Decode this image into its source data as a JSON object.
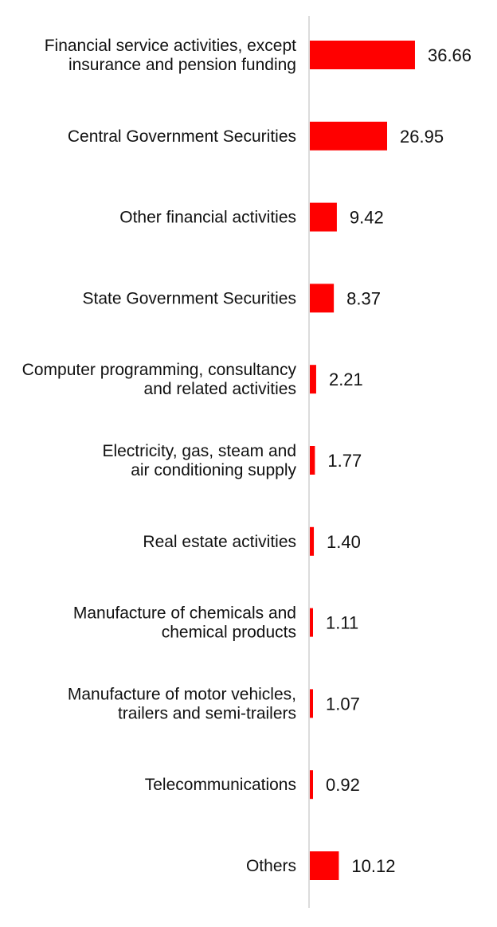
{
  "chart_data": {
    "type": "bar",
    "orientation": "horizontal",
    "title": "",
    "xlabel": "",
    "ylabel": "",
    "grid": false,
    "legend": "none",
    "bar_color": "#ff0000",
    "axis_color": "#d0d0d0",
    "categories": [
      [
        "Financial service activities, except",
        "insurance and pension funding"
      ],
      [
        "Central Government Securities"
      ],
      [
        "Other financial activities"
      ],
      [
        "State Government Securities"
      ],
      [
        "Computer programming, consultancy",
        "and related activities"
      ],
      [
        "Electricity, gas, steam and",
        "air conditioning supply"
      ],
      [
        "Real estate activities"
      ],
      [
        "Manufacture of chemicals and",
        "chemical products"
      ],
      [
        "Manufacture of motor vehicles,",
        "trailers and semi-trailers"
      ],
      [
        "Telecommunications"
      ],
      [
        "Others"
      ]
    ],
    "values": [
      36.66,
      26.95,
      9.42,
      8.37,
      2.21,
      1.77,
      1.4,
      1.11,
      1.07,
      0.92,
      10.12
    ],
    "value_labels": [
      "36.66",
      "26.95",
      "9.42",
      "8.37",
      "2.21",
      "1.77",
      "1.40",
      "1.11",
      "1.07",
      "0.92",
      "10.12"
    ],
    "xlim": [
      0,
      40
    ]
  }
}
